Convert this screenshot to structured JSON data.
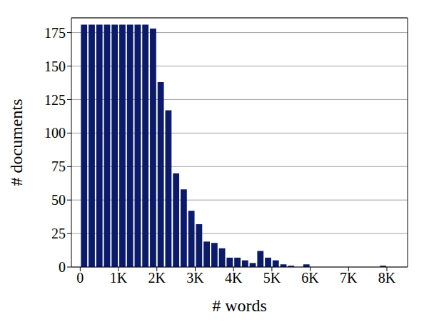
{
  "chart_data": {
    "type": "histogram",
    "x_label": "# words",
    "y_label": "# documents",
    "bins": [
      0,
      200,
      400,
      600,
      800,
      1000,
      1200,
      1400,
      1600,
      1800,
      2000,
      2200,
      2400,
      2600,
      2800,
      3000,
      3200,
      3400,
      3600,
      3800,
      4000,
      4200,
      4400,
      4600,
      4800,
      5000,
      5200,
      5400,
      5600,
      5800,
      6000,
      6200,
      6400,
      6600,
      6800,
      7000,
      7200,
      7400,
      7600,
      7800,
      8000
    ],
    "values": [
      181,
      181,
      181,
      181,
      181,
      181,
      181,
      181,
      181,
      178,
      138,
      117,
      70,
      58,
      42,
      32,
      19,
      18,
      14,
      7,
      7,
      5,
      3,
      12,
      7,
      5,
      2,
      1,
      0,
      2,
      0,
      0,
      0,
      0,
      0,
      0,
      0,
      0,
      0,
      1
    ],
    "color": "#0c1a6b",
    "xlim": [
      -230,
      8540
    ],
    "ylim": [
      0,
      186
    ],
    "xticks": [
      0,
      {
        "value": 1000,
        "label": "1K"
      },
      {
        "value": 2000,
        "label": "2K"
      },
      {
        "value": 3000,
        "label": "3K"
      },
      {
        "value": 4000,
        "label": "4K"
      },
      {
        "value": 5000,
        "label": "5K"
      },
      {
        "value": 6000,
        "label": "6K"
      },
      {
        "value": 7000,
        "label": "7K"
      },
      {
        "value": 8000,
        "label": "8K"
      }
    ],
    "yticks": [
      0,
      25,
      50,
      75,
      100,
      125,
      150,
      175
    ],
    "grid": true
  }
}
